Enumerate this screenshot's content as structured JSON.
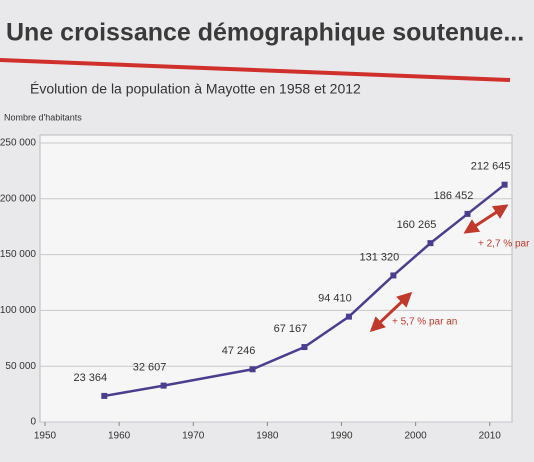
{
  "chart_data": {
    "type": "line",
    "title": "Une croissance démographique soutenue...",
    "subtitle": "Évolution de la population à Mayotte en 1958 et 2012",
    "y_label": "Nombre d'habitants",
    "x": [
      1958,
      1966,
      1978,
      1985,
      1991,
      1997,
      2002,
      2007,
      2012
    ],
    "series": [
      {
        "name": "Population",
        "color": "#4a3f8f",
        "values": [
          23364,
          32607,
          47246,
          67167,
          94410,
          131320,
          160265,
          186452,
          212645
        ],
        "value_labels": [
          "23 364",
          "32 607",
          "47 246",
          "67 167",
          "94 410",
          "131 320",
          "160 265",
          "186 452",
          "212 645"
        ]
      }
    ],
    "xlim": [
      1950,
      2013
    ],
    "ylim": [
      0,
      250000
    ],
    "xticks": [
      1950,
      1960,
      1970,
      1980,
      1990,
      2000,
      2010
    ],
    "yticks": [
      0,
      {
        "value": 50000,
        "label": "50 000"
      },
      {
        "value": 100000,
        "label": "100 000"
      },
      {
        "value": 150000,
        "label": "150 000"
      },
      {
        "value": 200000,
        "label": "200 000"
      },
      {
        "value": 250000,
        "label": "250 000"
      }
    ],
    "grid": true,
    "annotations": [
      "+ 5,7 % par an",
      "+ 2,7 % par"
    ]
  }
}
